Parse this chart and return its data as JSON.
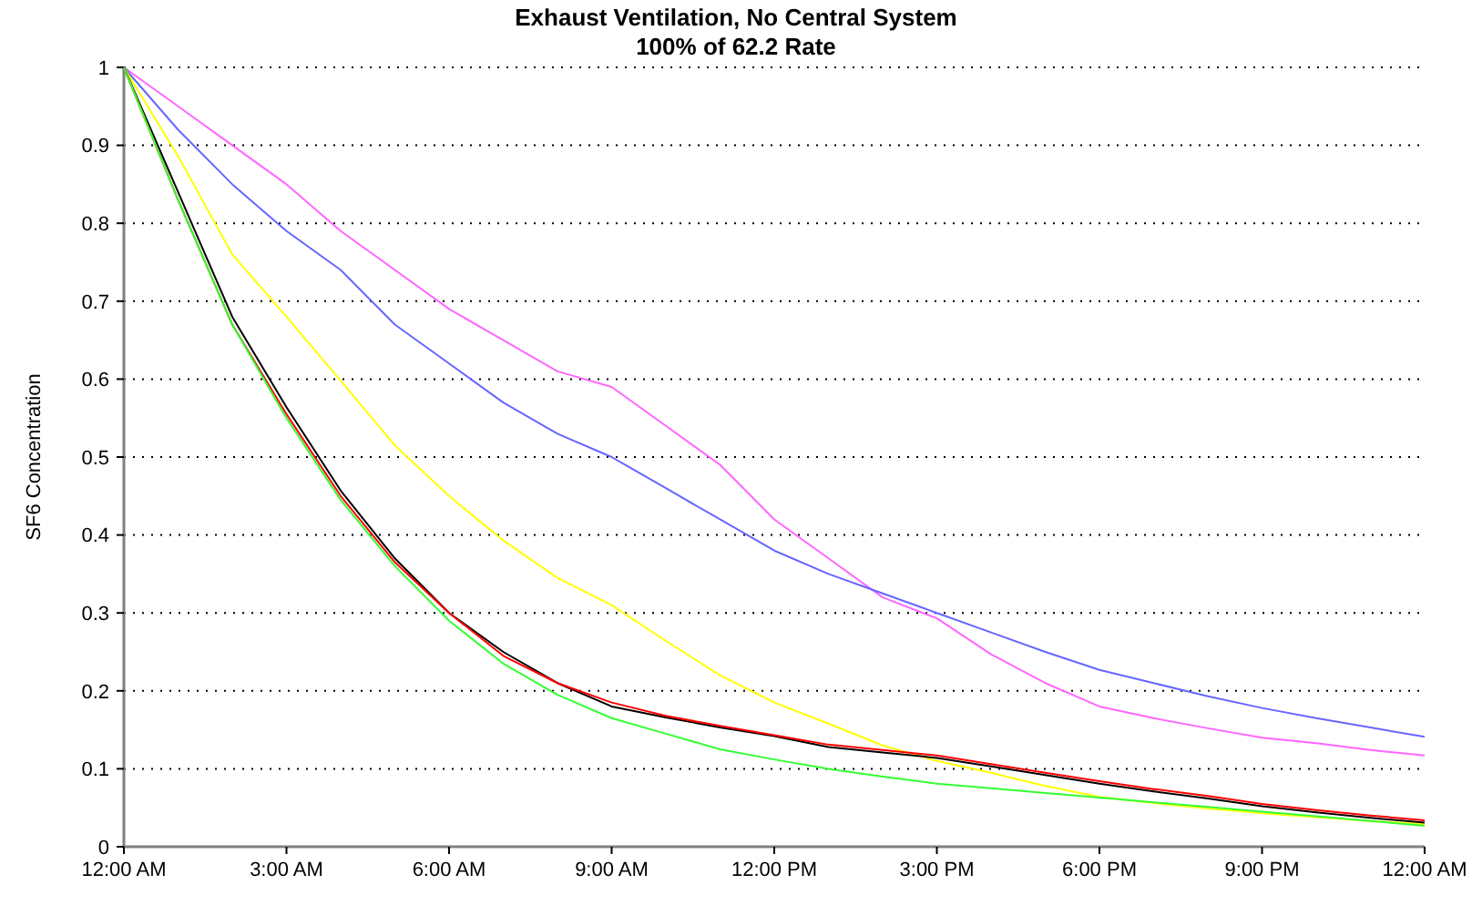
{
  "chart_data": {
    "type": "line",
    "title": "Exhaust Ventilation, No Central System",
    "subtitle": "100% of 62.2 Rate",
    "ylabel": "SF6 Concentration",
    "x": [
      0,
      1,
      2,
      3,
      4,
      5,
      6,
      7,
      8,
      9,
      10,
      11,
      12,
      13,
      14,
      15,
      16,
      17,
      18,
      19,
      20,
      21,
      22,
      23,
      24
    ],
    "xlim": [
      0,
      24
    ],
    "xticks": [
      {
        "value": 0,
        "label": "12:00 AM"
      },
      {
        "value": 3,
        "label": "3:00 AM"
      },
      {
        "value": 6,
        "label": "6:00 AM"
      },
      {
        "value": 9,
        "label": "9:00 AM"
      },
      {
        "value": 12,
        "label": "12:00 PM"
      },
      {
        "value": 15,
        "label": "3:00 PM"
      },
      {
        "value": 18,
        "label": "6:00 PM"
      },
      {
        "value": 21,
        "label": "9:00 PM"
      },
      {
        "value": 24,
        "label": "12:00 AM"
      }
    ],
    "ylim": [
      0,
      1
    ],
    "yticks": [
      0,
      0.1,
      0.2,
      0.3,
      0.4,
      0.5,
      0.6,
      0.7,
      0.8,
      0.9,
      1
    ],
    "grid": "y",
    "marker": "none",
    "line_style": "solid",
    "series": [
      {
        "color": "#ff66ff",
        "values": [
          1,
          0.95,
          0.9,
          0.85,
          0.79,
          0.74,
          0.69,
          0.65,
          0.61,
          0.59,
          0.54,
          0.49,
          0.42,
          0.37,
          0.32,
          0.293,
          0.247,
          0.21,
          0.18,
          0.165,
          0.152,
          0.14,
          0.133,
          0.124,
          0.117
        ]
      },
      {
        "color": "#6666ff",
        "values": [
          1,
          0.92,
          0.85,
          0.79,
          0.74,
          0.67,
          0.62,
          0.57,
          0.53,
          0.5,
          0.46,
          0.42,
          0.38,
          0.35,
          0.325,
          0.3,
          0.275,
          0.25,
          0.227,
          0.21,
          0.193,
          0.178,
          0.165,
          0.153,
          0.141
        ]
      },
      {
        "color": "#ffff00",
        "values": [
          1,
          0.886,
          0.76,
          0.68,
          0.598,
          0.515,
          0.45,
          0.393,
          0.345,
          0.31,
          0.264,
          0.22,
          0.185,
          0.158,
          0.13,
          0.11,
          0.095,
          0.078,
          0.064,
          0.056,
          0.049,
          0.043,
          0.038,
          0.033,
          0.029
        ]
      },
      {
        "color": "#000000",
        "values": [
          1,
          0.84,
          0.68,
          0.564,
          0.457,
          0.37,
          0.3,
          0.25,
          0.21,
          0.18,
          0.166,
          0.153,
          0.142,
          0.128,
          0.121,
          0.114,
          0.103,
          0.092,
          0.081,
          0.071,
          0.062,
          0.052,
          0.044,
          0.037,
          0.031
        ]
      },
      {
        "color": "#ff0000",
        "values": [
          1,
          0.83,
          0.67,
          0.555,
          0.45,
          0.365,
          0.3,
          0.245,
          0.21,
          0.185,
          0.168,
          0.155,
          0.143,
          0.131,
          0.124,
          0.117,
          0.106,
          0.095,
          0.084,
          0.074,
          0.065,
          0.055,
          0.047,
          0.04,
          0.034
        ]
      },
      {
        "color": "#33ff33",
        "values": [
          1,
          0.83,
          0.67,
          0.55,
          0.445,
          0.36,
          0.29,
          0.235,
          0.195,
          0.165,
          0.145,
          0.125,
          0.112,
          0.1,
          0.09,
          0.081,
          0.075,
          0.069,
          0.063,
          0.057,
          0.051,
          0.045,
          0.039,
          0.033,
          0.027
        ]
      }
    ]
  }
}
